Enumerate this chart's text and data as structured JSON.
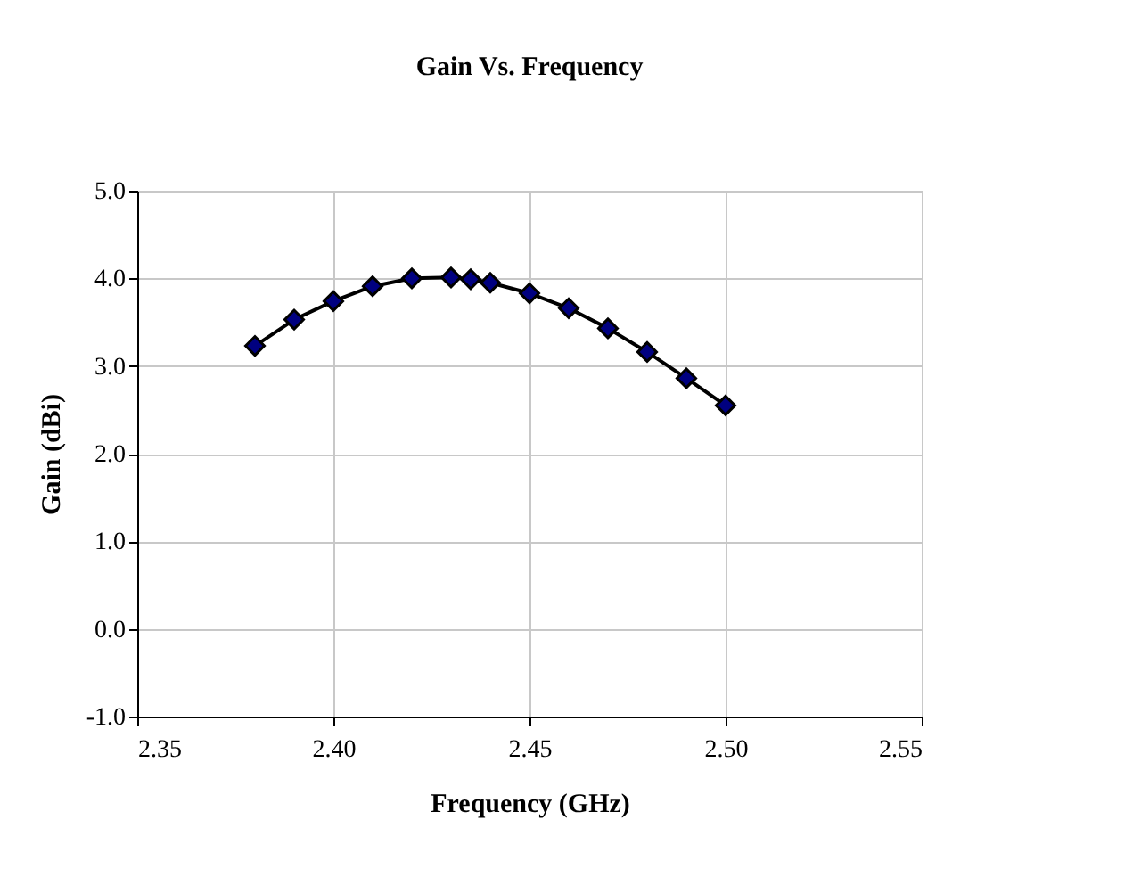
{
  "chart_data": {
    "type": "line",
    "title": "Gain Vs. Frequency",
    "xlabel": "Frequency (GHz)",
    "ylabel": "Gain (dBi)",
    "x": [
      2.38,
      2.39,
      2.4,
      2.41,
      2.42,
      2.43,
      2.435,
      2.44,
      2.45,
      2.46,
      2.47,
      2.48,
      2.49,
      2.5
    ],
    "series": [
      {
        "color": "#000080",
        "values": [
          3.23,
          3.53,
          3.74,
          3.91,
          4.0,
          4.01,
          3.99,
          3.95,
          3.83,
          3.66,
          3.43,
          3.16,
          2.86,
          2.55
        ]
      }
    ],
    "xlim": [
      2.35,
      2.55
    ],
    "xticks": [
      {
        "value": 2.35,
        "label": "2.35"
      },
      {
        "value": 2.4,
        "label": "2.40"
      },
      {
        "value": 2.45,
        "label": "2.45"
      },
      {
        "value": 2.5,
        "label": "2.50"
      },
      {
        "value": 2.55,
        "label": "2.55"
      }
    ],
    "ylim": [
      -1,
      5
    ],
    "yticks": [
      {
        "value": -1,
        "label": "-1.0"
      },
      {
        "value": 0,
        "label": "0.0"
      },
      {
        "value": 1,
        "label": "1.0"
      },
      {
        "value": 2,
        "label": "2.0"
      },
      {
        "value": 3,
        "label": "3.0"
      },
      {
        "value": 4,
        "label": "4.0"
      },
      {
        "value": 5,
        "label": "5.0"
      }
    ],
    "grid": true,
    "marker": "diamond",
    "line_style": "solid"
  }
}
